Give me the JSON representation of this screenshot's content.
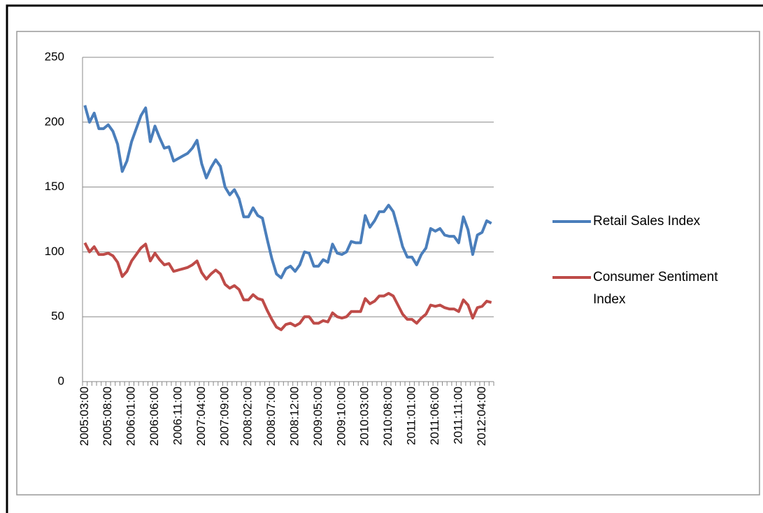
{
  "chart_data": {
    "type": "line",
    "categories": [
      "2005:03:00",
      null,
      null,
      null,
      null,
      "2005:08:00",
      null,
      null,
      null,
      null,
      "2006:01:00",
      null,
      null,
      null,
      null,
      "2006:06:00",
      null,
      null,
      null,
      null,
      "2006:11:00",
      null,
      null,
      null,
      null,
      "2007:04:00",
      null,
      null,
      null,
      null,
      "2007:09:00",
      null,
      null,
      null,
      null,
      "2008:02:00",
      null,
      null,
      null,
      null,
      "2008:07:00",
      null,
      null,
      null,
      null,
      "2008:12:00",
      null,
      null,
      null,
      null,
      "2009:05:00",
      null,
      null,
      null,
      null,
      "2009:10:00",
      null,
      null,
      null,
      null,
      "2010:03:00",
      null,
      null,
      null,
      null,
      "2010:08:00",
      null,
      null,
      null,
      null,
      "2011:01:00",
      null,
      null,
      null,
      null,
      "2011:06:00",
      null,
      null,
      null,
      null,
      "2011:11:00",
      null,
      null,
      null,
      null,
      "2012:04:00",
      null,
      null
    ],
    "series": [
      {
        "name": "Retail Sales Index",
        "color": "#4a7ebb",
        "values": [
          213,
          200,
          207,
          195,
          195,
          198,
          193,
          183,
          162,
          170,
          185,
          195,
          205,
          211,
          185,
          197,
          188,
          180,
          181,
          170,
          172,
          174,
          176,
          180,
          186,
          168,
          157,
          165,
          171,
          166,
          150,
          144,
          148,
          141,
          127,
          127,
          134,
          128,
          126,
          110,
          95,
          83,
          80,
          87,
          89,
          85,
          90,
          100,
          99,
          89,
          89,
          94,
          92,
          106,
          99,
          98,
          100,
          108,
          107,
          107,
          128,
          119,
          124,
          131,
          131,
          136,
          131,
          118,
          104,
          96,
          96,
          90,
          98,
          103,
          118,
          116,
          118,
          113,
          112,
          112,
          107,
          127,
          117,
          98,
          113,
          115,
          124,
          122
        ]
      },
      {
        "name": "Consumer Sentiment Index",
        "color": "#be4b48",
        "values": [
          107,
          100,
          104,
          98,
          98,
          99,
          97,
          92,
          81,
          85,
          93,
          98,
          103,
          106,
          93,
          99,
          94,
          90,
          91,
          85,
          86,
          87,
          88,
          90,
          93,
          84,
          79,
          83,
          86,
          83,
          75,
          72,
          74,
          71,
          63,
          63,
          67,
          64,
          63,
          55,
          48,
          42,
          40,
          44,
          45,
          43,
          45,
          50,
          50,
          45,
          45,
          47,
          46,
          53,
          50,
          49,
          50,
          54,
          54,
          54,
          64,
          60,
          62,
          66,
          66,
          68,
          66,
          59,
          52,
          48,
          48,
          45,
          49,
          52,
          59,
          58,
          59,
          57,
          56,
          56,
          54,
          63,
          59,
          49,
          57,
          58,
          62,
          61
        ]
      }
    ],
    "ylim": [
      0,
      250
    ],
    "yticks": [
      0,
      50,
      100,
      150,
      200,
      250
    ],
    "grid": true,
    "legend": "right"
  }
}
